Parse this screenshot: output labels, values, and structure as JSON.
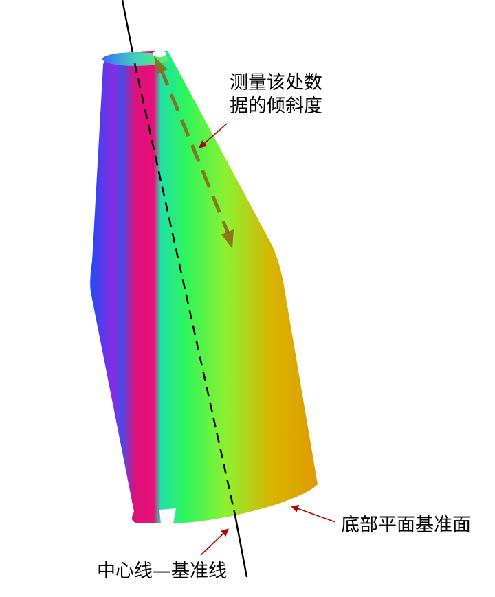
{
  "annotations": {
    "tilt_measurement": [
      "测量该处数",
      "据的倾斜度"
    ],
    "base_plane": "底部平面基准面",
    "center_line": "中心线—基准线"
  },
  "colors": {
    "arrow": "#b30000",
    "measure_arrow": "#8a6a1a",
    "axis_line": "#000000",
    "surface_gradient": [
      "#3a5cf0",
      "#8a2be2",
      "#e0107a",
      "#22e06a",
      "#2ef55a",
      "#7ef03a",
      "#d8b400",
      "#e0a000"
    ]
  }
}
